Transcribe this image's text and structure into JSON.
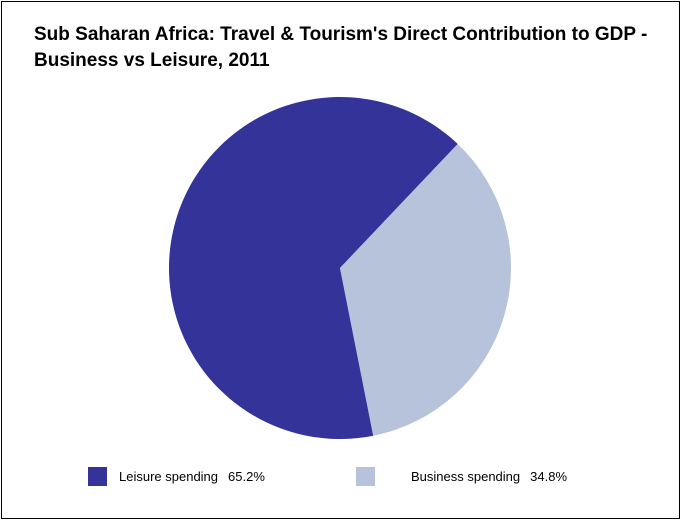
{
  "chart_data": {
    "type": "pie",
    "title": "Sub Saharan Africa: Travel & Tourism's Direct Contribution to GDP - Business vs Leisure, 2011",
    "categories": [
      "Leisure spending",
      "Business spending"
    ],
    "values": [
      65.2,
      34.8
    ],
    "value_labels": [
      "65.2%",
      "34.8%"
    ],
    "colors": [
      "#333399",
      "#b7c3db"
    ],
    "legend_placement": "bottom"
  }
}
